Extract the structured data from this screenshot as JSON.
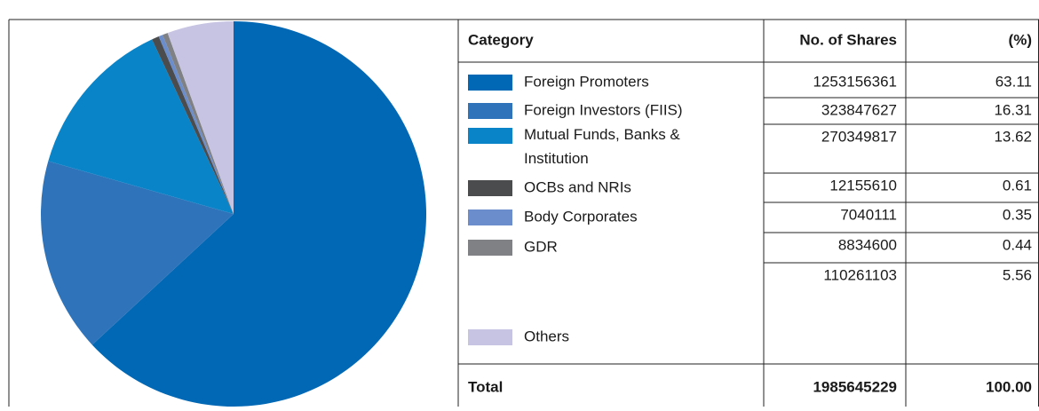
{
  "chart_data": {
    "type": "pie",
    "headers": [
      "Category",
      "No. of Shares",
      "(%)"
    ],
    "categories": [
      "Foreign Promoters",
      "Foreign Investors (FIIS)",
      "Mutual Funds, Banks & Institution",
      "OCBs and NRIs",
      "Body Corporates",
      "GDR",
      "Others"
    ],
    "colors": [
      "#0068b4",
      "#2f74ba",
      "#0a84c8",
      "#4b4c4e",
      "#6c8dcb",
      "#7f8184",
      "#c6c4e2"
    ],
    "shares": [
      1253156361,
      323847627,
      270349817,
      12155610,
      7040111,
      8834600,
      110261103
    ],
    "percent": [
      63.11,
      16.31,
      13.62,
      0.61,
      0.35,
      0.44,
      5.56
    ],
    "total": {
      "label": "Total",
      "shares": 1985645229,
      "percent": {
        "value": 100,
        "label": "100.00"
      }
    }
  }
}
